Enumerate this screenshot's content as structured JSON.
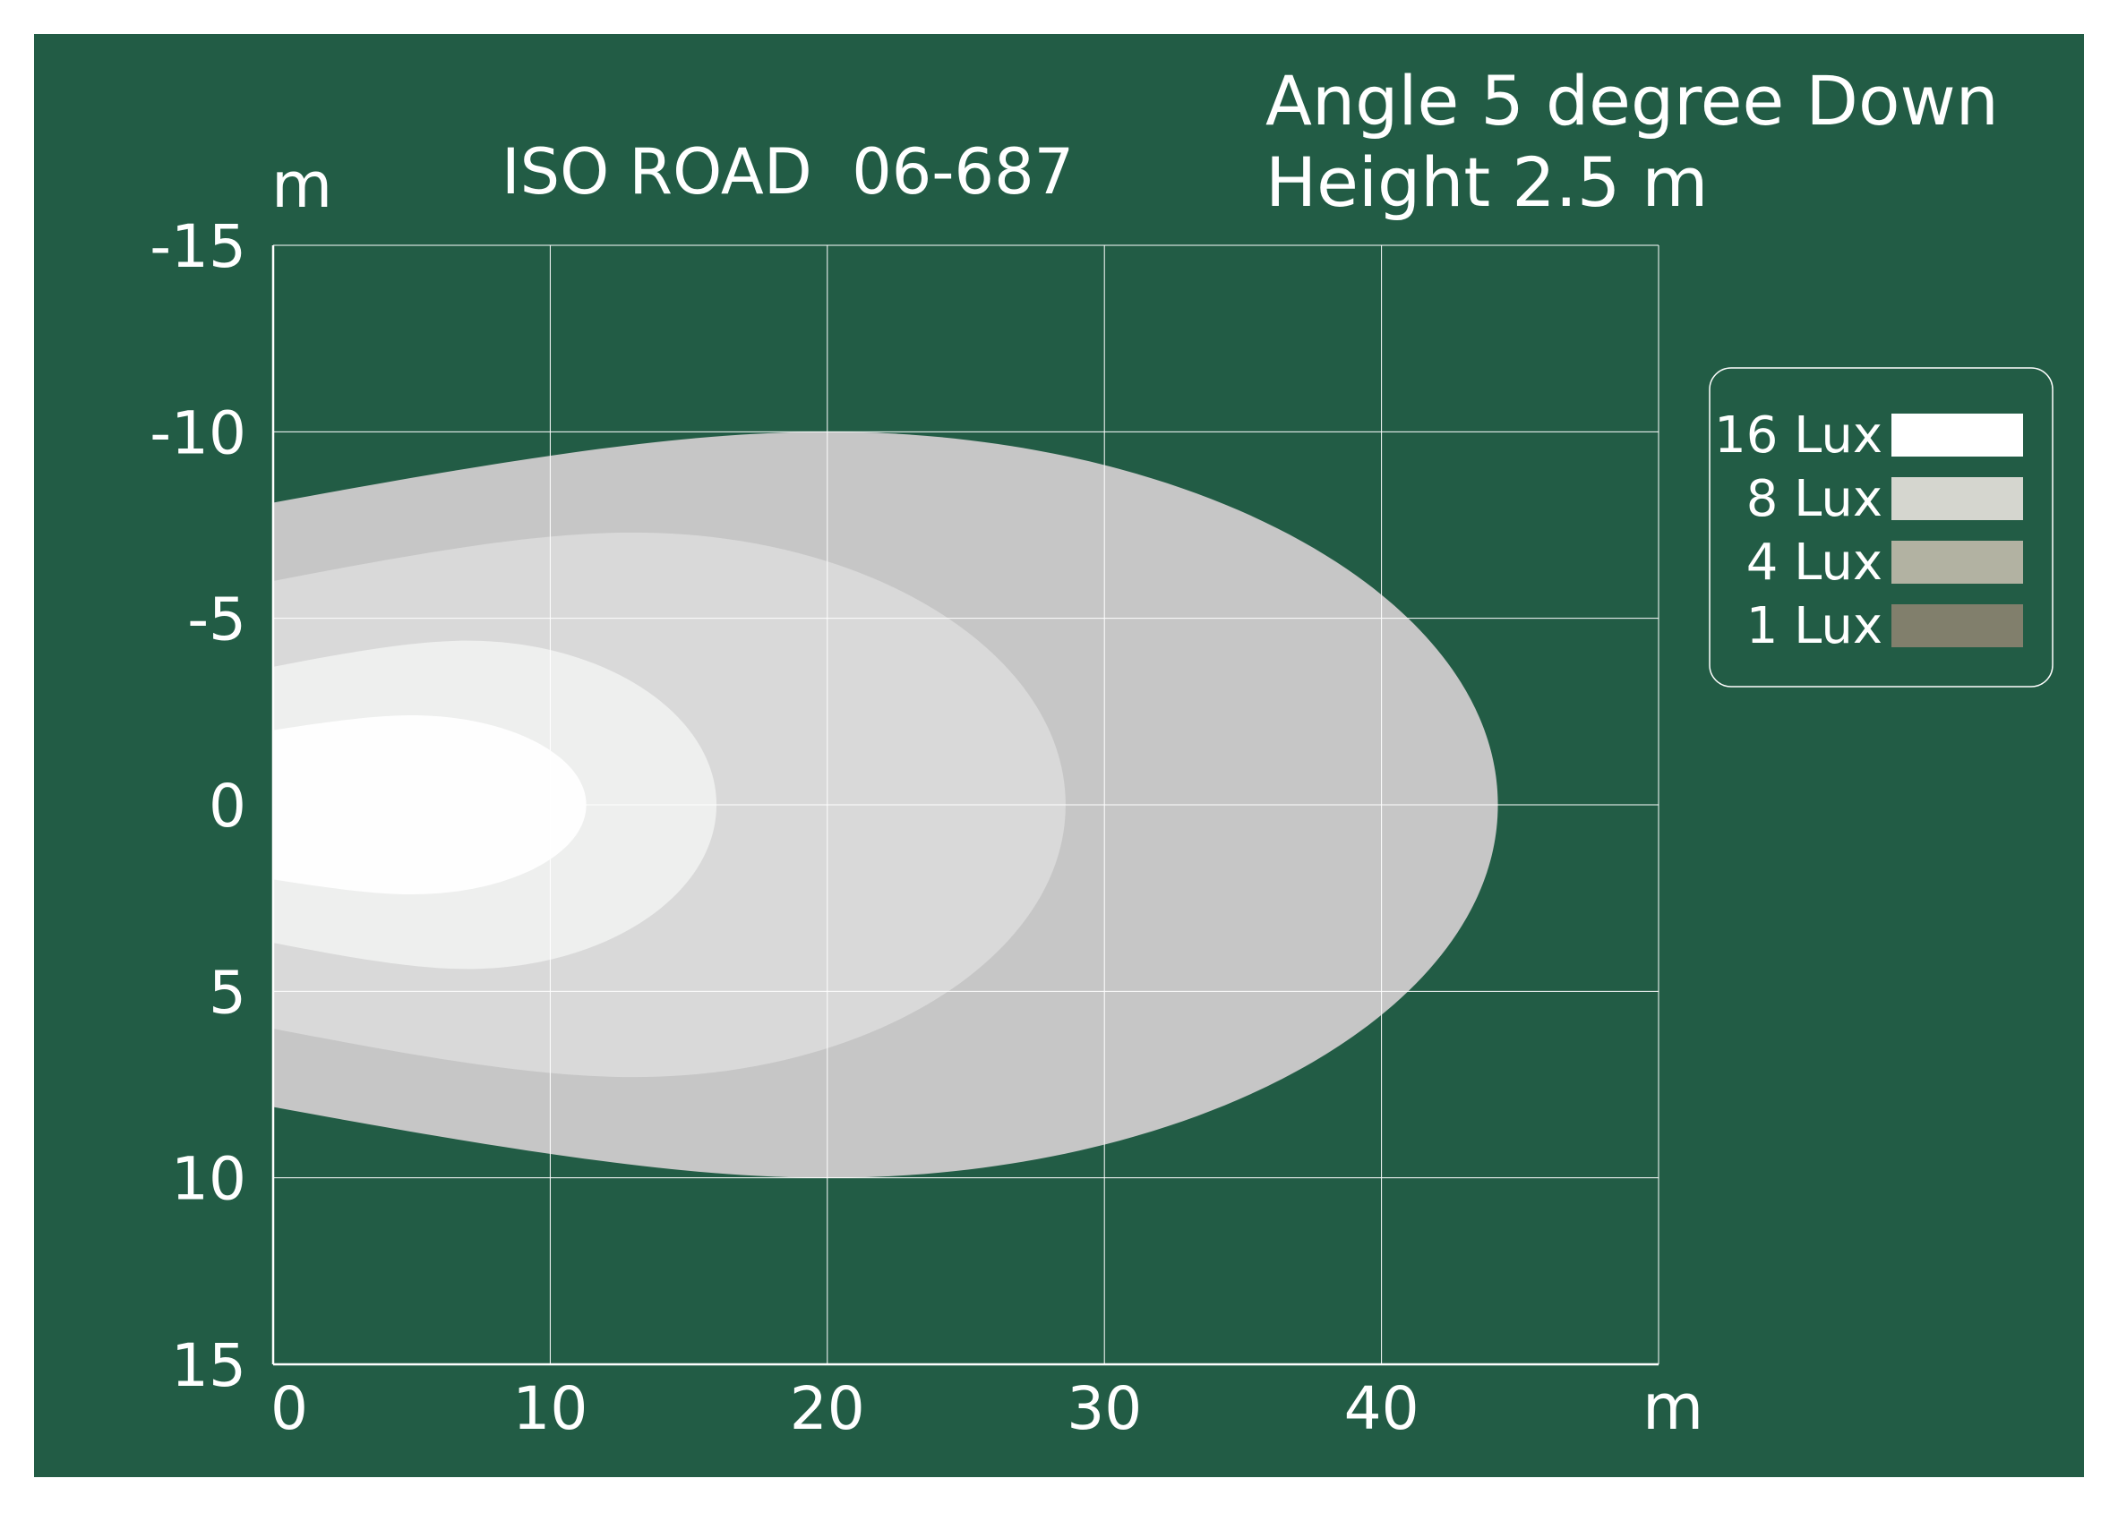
{
  "chart_data": {
    "type": "area",
    "title": "ISO ROAD  06-687",
    "subtitle_lines": [
      "Angle 5 degree Down",
      "Height 2.5 m"
    ],
    "xlabel": "m",
    "ylabel": "m",
    "xlim": [
      0,
      50
    ],
    "ylim": [
      -15,
      15
    ],
    "x_ticks": [
      "0",
      "10",
      "20",
      "30",
      "40"
    ],
    "x_tick_values": [
      0,
      10,
      20,
      30,
      40
    ],
    "y_ticks": [
      "-15",
      "-10",
      "-5",
      "0",
      "5",
      "10",
      "15"
    ],
    "y_tick_values": [
      -15,
      -10,
      -5,
      0,
      5,
      10,
      15
    ],
    "grid": true,
    "legend_position": "right",
    "series": [
      {
        "name": "1 Lux",
        "color": "#c6c6c6",
        "reach_m": 44.2,
        "half_width_m": 10,
        "max_width_at_m": 20,
        "start_half_width_m": 8.1
      },
      {
        "name": "4 Lux",
        "color": "#d9d9d9",
        "reach_m": 28.6,
        "half_width_m": 7.3,
        "max_width_at_m": 13,
        "start_half_width_m": 6.0
      },
      {
        "name": "8 Lux",
        "color": "#eeefee",
        "reach_m": 16.0,
        "half_width_m": 4.4,
        "max_width_at_m": 7,
        "start_half_width_m": 3.7
      },
      {
        "name": "16 Lux",
        "color": "#fefefe",
        "reach_m": 11.3,
        "half_width_m": 2.4,
        "max_width_at_m": 5,
        "start_half_width_m": 2.0
      }
    ],
    "legend": [
      {
        "label": "16 Lux",
        "color": "#ffffff"
      },
      {
        "label": "8 Lux",
        "color": "#d5d6cf"
      },
      {
        "label": "4 Lux",
        "color": "#b2b2a2"
      },
      {
        "label": "1 Lux",
        "color": "#817f6c"
      }
    ]
  },
  "colors": {
    "background": "#225c45",
    "grid": "#ffffff",
    "text": "#ffffff"
  }
}
